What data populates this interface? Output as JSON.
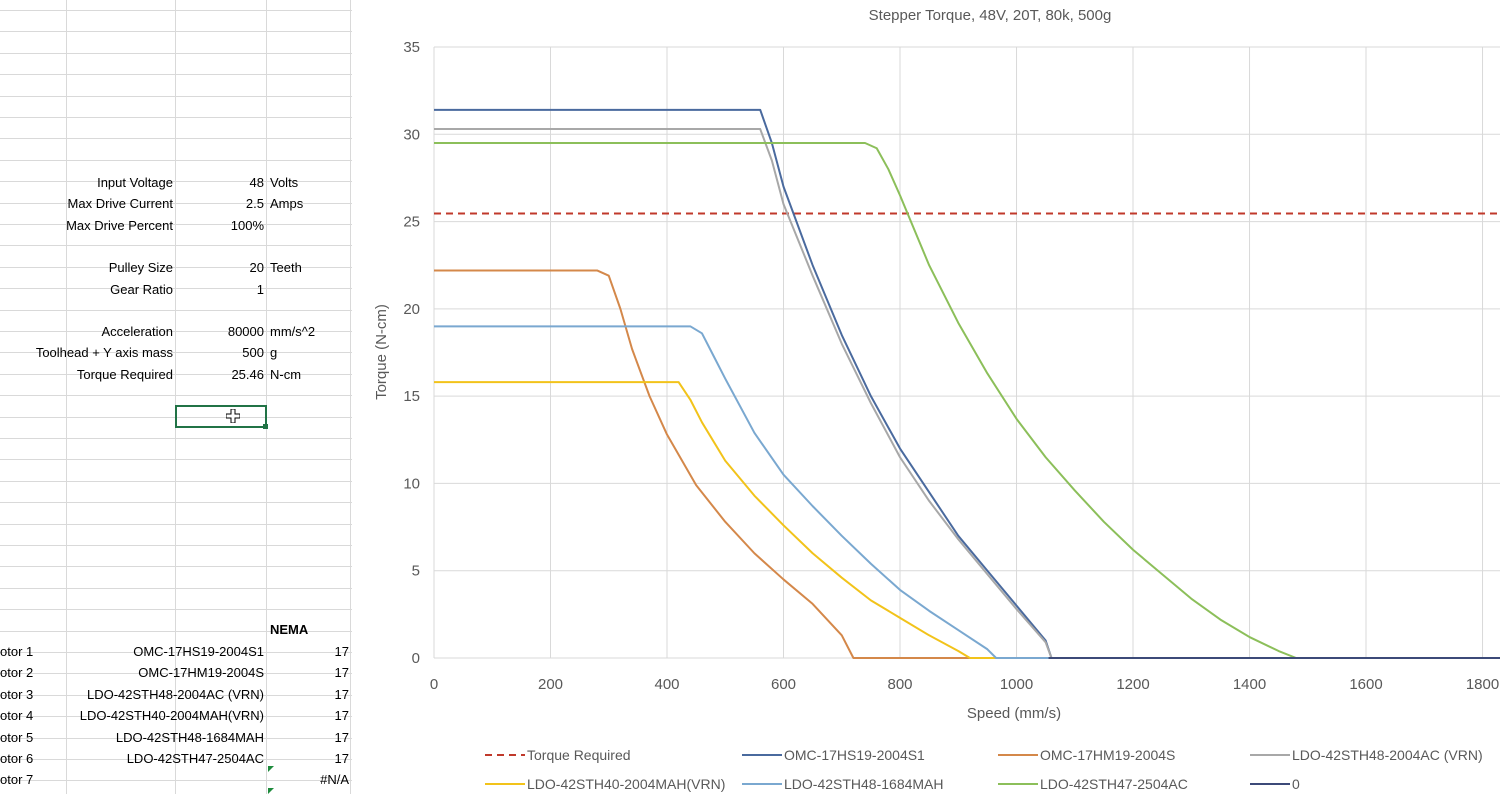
{
  "params": [
    {
      "label": "Input Voltage",
      "value": "48",
      "unit": "Volts"
    },
    {
      "label": "Max Drive Current",
      "value": "2.5",
      "unit": "Amps"
    },
    {
      "label": "Max Drive Percent",
      "value": "100%",
      "unit": ""
    },
    {
      "label": "",
      "value": "",
      "unit": ""
    },
    {
      "label": "Pulley Size",
      "value": "20",
      "unit": "Teeth"
    },
    {
      "label": "Gear Ratio",
      "value": "1",
      "unit": ""
    },
    {
      "label": "",
      "value": "",
      "unit": ""
    },
    {
      "label": "Acceleration",
      "value": "80000",
      "unit": "mm/s^2"
    },
    {
      "label": "Toolhead + Y axis mass",
      "value": "500",
      "unit": "g"
    },
    {
      "label": "Torque Required",
      "value": "25.46",
      "unit": "N-cm"
    }
  ],
  "motors_header": {
    "nema": "NEMA"
  },
  "motors": [
    {
      "label": "otor 1",
      "model": "OMC-17HS19-2004S1",
      "nema": "17"
    },
    {
      "label": "otor 2",
      "model": "OMC-17HM19-2004S",
      "nema": "17"
    },
    {
      "label": "otor 3",
      "model": "LDO-42STH48-2004AC (VRN)",
      "nema": "17"
    },
    {
      "label": "otor 4",
      "model": "LDO-42STH40-2004MAH(VRN)",
      "nema": "17"
    },
    {
      "label": "otor 5",
      "model": "LDO-42STH48-1684MAH",
      "nema": "17"
    },
    {
      "label": "otor 6",
      "model": "LDO-42STH47-2504AC",
      "nema": "17"
    },
    {
      "label": "otor 7",
      "model": "",
      "nema": "#N/A"
    }
  ],
  "chart_data": {
    "type": "line",
    "title": "Stepper Torque, 48V, 20T, 80k, 500g",
    "xlabel": "Speed (mm/s)",
    "ylabel": "Torque (N-cm)",
    "xlim": [
      0,
      1800
    ],
    "ylim": [
      0,
      35
    ],
    "xticks": [
      0,
      200,
      400,
      600,
      800,
      1000,
      1200,
      1400,
      1600,
      1800
    ],
    "yticks": [
      0,
      5,
      10,
      15,
      20,
      25,
      30,
      35
    ],
    "grid": true,
    "legend_position": "bottom",
    "series": [
      {
        "name": "Torque Required",
        "color": "#c0392b",
        "dash": true,
        "x": [
          0,
          1830
        ],
        "y": [
          25.46,
          25.46
        ]
      },
      {
        "name": "OMC-17HS19-2004S1",
        "color": "#4a6a9e",
        "x": [
          0,
          560,
          580,
          600,
          650,
          700,
          750,
          800,
          850,
          900,
          950,
          1000,
          1050,
          1060,
          1830
        ],
        "y": [
          31.4,
          31.4,
          29.5,
          27,
          22.5,
          18.5,
          15,
          12,
          9.5,
          7,
          5,
          3,
          1,
          0,
          0
        ]
      },
      {
        "name": "OMC-17HM19-2004S",
        "color": "#d4884a",
        "x": [
          0,
          280,
          300,
          320,
          340,
          370,
          400,
          450,
          500,
          550,
          600,
          650,
          700,
          720,
          1830
        ],
        "y": [
          22.2,
          22.2,
          21.9,
          20,
          17.7,
          15,
          12.8,
          9.9,
          7.8,
          6,
          4.5,
          3.1,
          1.3,
          0,
          0
        ]
      },
      {
        "name": "LDO-42STH48-2004AC (VRN)",
        "color": "#a8a8a8",
        "x": [
          0,
          560,
          580,
          600,
          650,
          700,
          750,
          800,
          850,
          900,
          950,
          1000,
          1050,
          1060,
          1830
        ],
        "y": [
          30.3,
          30.3,
          28.5,
          26,
          21.9,
          18,
          14.6,
          11.5,
          9,
          6.8,
          4.8,
          2.8,
          0.9,
          0,
          0
        ]
      },
      {
        "name": "LDO-42STH40-2004MAH(VRN)",
        "color": "#f2c31a",
        "x": [
          0,
          420,
          440,
          460,
          500,
          550,
          600,
          650,
          700,
          750,
          800,
          850,
          900,
          920,
          1830
        ],
        "y": [
          15.8,
          15.8,
          14.8,
          13.5,
          11.3,
          9.3,
          7.6,
          6,
          4.6,
          3.3,
          2.3,
          1.3,
          0.4,
          0,
          0
        ]
      },
      {
        "name": "LDO-42STH48-1684MAH",
        "color": "#7aa8d0",
        "x": [
          0,
          440,
          460,
          480,
          500,
          550,
          600,
          650,
          700,
          750,
          800,
          850,
          900,
          950,
          965,
          1830
        ],
        "y": [
          19,
          19,
          18.6,
          17.3,
          16,
          12.9,
          10.5,
          8.7,
          7,
          5.4,
          3.9,
          2.7,
          1.6,
          0.5,
          0,
          0
        ]
      },
      {
        "name": "LDO-42STH47-2504AC",
        "color": "#8cbf5a",
        "x": [
          0,
          740,
          760,
          780,
          800,
          850,
          900,
          950,
          1000,
          1050,
          1100,
          1150,
          1200,
          1250,
          1300,
          1350,
          1400,
          1450,
          1480,
          1830
        ],
        "y": [
          29.5,
          29.5,
          29.2,
          28,
          26.5,
          22.5,
          19.2,
          16.3,
          13.7,
          11.5,
          9.6,
          7.8,
          6.2,
          4.8,
          3.4,
          2.2,
          1.2,
          0.4,
          0,
          0
        ]
      },
      {
        "name": "0",
        "color": "#3c4a78",
        "x": [
          1055,
          1830
        ],
        "y": [
          0,
          0
        ]
      }
    ]
  }
}
